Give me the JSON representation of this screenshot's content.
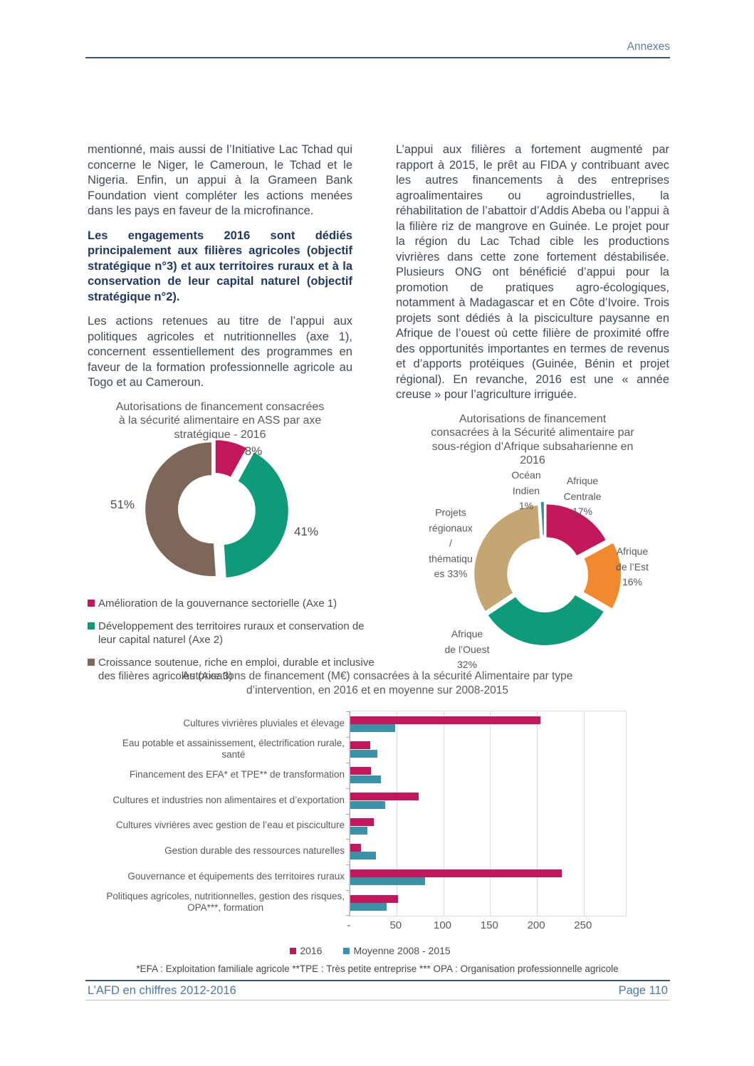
{
  "page": {
    "header": "Annexes",
    "footer_left": "L’AFD en chiffres 2012-2016",
    "footer_right": "Page 110"
  },
  "columns": {
    "left": {
      "p1": "mentionné, mais aussi de l’Initiative Lac Tchad qui concerne le Niger, le Cameroun, le Tchad et le Nigeria. Enfin, un appui à la Grameen Bank Foundation vient compléter les actions menées dans les pays en faveur de la microfinance.",
      "p2": "Les engagements 2016 sont dédiés principalement aux filières agricoles (objectif stratégique n°3) et aux territoires ruraux et à la conservation de leur capital naturel (objectif stratégique n°2).",
      "p3": "Les actions retenues au titre de l’appui aux politiques agricoles et nutritionnelles (axe 1), concernent essentiellement des programmes en faveur de la formation professionnelle agricole au Togo et au Cameroun."
    },
    "right": {
      "p1": "L’appui aux filières a fortement augmenté par rapport à 2015, le prêt au FIDA y contribuant avec les autres financements à des entreprises agroalimentaires ou agroindustrielles, la réhabilitation de l’abattoir d’Addis Abeba ou l’appui à la filière riz de mangrove en Guinée. Le projet pour la région du Lac Tchad cible les productions vivrières dans cette zone fortement déstabilisée. Plusieurs ONG ont bénéficié d’appui pour la promotion de pratiques agro-écologiques, notamment à Madagascar et en Côte d’Ivoire. Trois projets sont dédiés à la pisciculture paysanne en Afrique de l’ouest où cette filière de proximité offre des opportunités importantes en termes de revenus et d’apports protéiques (Guinée, Bénin et projet régional). En revanche, 2016 est une « année creuse » pour l’agriculture irriguée."
    }
  },
  "chart_data": [
    {
      "type": "pie",
      "donut": true,
      "title": "Autorisations de financement consacrées\nà la sécurité alimentaire en ASS par axe\nstratégique - 2016",
      "labels": [
        "Amélioration de la gouvernance sectorielle (Axe 1)",
        "Développement des territoires ruraux et conservation de leur capital naturel (Axe 2)",
        "Croissance soutenue, riche en emploi, durable et inclusive des filières agricoles (Axe 3)"
      ],
      "values": [
        8,
        41,
        51
      ],
      "value_labels": [
        "8%",
        "41%",
        "51%"
      ],
      "colors": [
        "#C3175B",
        "#0E9B7A",
        "#7C6758"
      ],
      "legend_position": "bottom-left"
    },
    {
      "type": "pie",
      "donut": true,
      "title": "Autorisations de financement\nconsacrées à la Sécurité alimentaire par\nsous-région d’Afrique subsaharienne en\n2016",
      "labels": [
        "Afrique Centrale",
        "Afrique de l’Est",
        "Afrique de l’Ouest",
        "Projets régionaux / thématiques",
        "Océan Indien"
      ],
      "values": [
        17,
        16,
        32,
        33,
        1
      ],
      "callout_labels": [
        "Afrique\nCentrale\n17%",
        "Afrique\nde l’Est\n16%",
        "Afrique\nde l’Ouest\n32%",
        "Projets\nrégionaux\n/\nthématiqu\nes 33%",
        "Océan\nIndien\n1%"
      ],
      "colors": [
        "#C3175B",
        "#F18A2E",
        "#0E9B7A",
        "#C3A672",
        "#2F8CA3"
      ]
    },
    {
      "type": "bar",
      "orientation": "horizontal",
      "title": "Autorisations  de financement (M€) consacrées à la sécurité Alimentaire par type\nd’intervention, en 2016 et en moyenne sur 2008-2015",
      "categories": [
        "Cultures vivrières pluviales et élevage",
        "Eau potable et assainissement, électrification rurale,\nsanté",
        "Financement des EFA* et TPE** de transformation",
        "Cultures et industries non alimentaires et d’exportation",
        "Cultures vivrières avec gestion de l’eau et pisciculture",
        "Gestion durable des ressources naturelles",
        "Gouvernance et équipements des territoires ruraux",
        "Politiques agricoles, nutritionnelles, gestion des risques,\nOPA***, formation"
      ],
      "series": [
        {
          "name": "2016",
          "color": "#C3175B",
          "values": [
            203,
            21,
            22,
            73,
            25,
            11,
            226,
            51
          ]
        },
        {
          "name": "Moyenne 2008 - 2015",
          "color": "#3A92A8",
          "values": [
            48,
            29,
            33,
            37,
            18,
            27,
            80,
            39
          ]
        }
      ],
      "xlim": [
        0,
        295
      ],
      "xticks": [
        "-",
        "50",
        "100",
        "150",
        "200",
        "250"
      ],
      "xtick_values": [
        0,
        50,
        100,
        150,
        200,
        250
      ],
      "grid": true,
      "legend_position": "bottom"
    }
  ],
  "footnote": "*EFA : Exploitation familiale agricole **TPE : Très petite entreprise ***  OPA : Organisation professionnelle agricole"
}
